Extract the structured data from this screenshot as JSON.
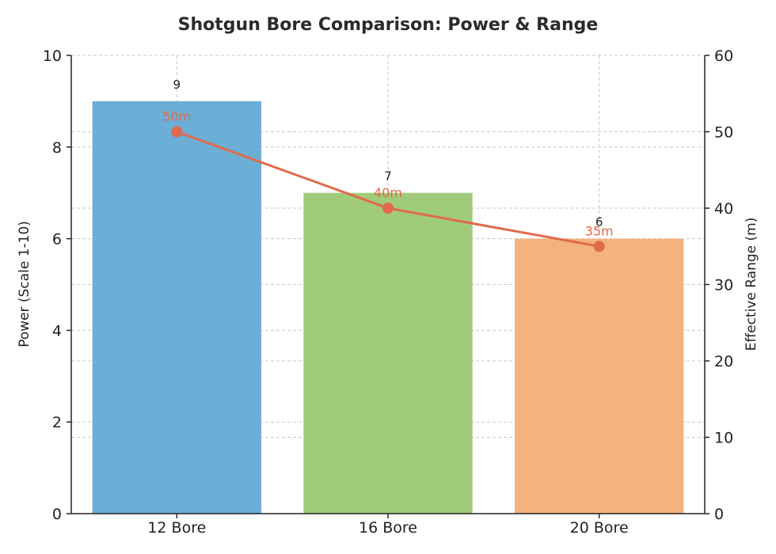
{
  "chart_data": {
    "type": "bar",
    "title": "Shotgun Bore Comparison: Power & Range",
    "categories": [
      "12 Bore",
      "16 Bore",
      "20 Bore"
    ],
    "series": [
      {
        "type": "bar",
        "axis": "left",
        "values": [
          9,
          7,
          6
        ],
        "labels": [
          "9",
          "7",
          "6"
        ],
        "colors": [
          "#6baed6",
          "#a0cb7a",
          "#f4b27f"
        ]
      },
      {
        "type": "line",
        "axis": "right",
        "values": [
          50,
          40,
          35
        ],
        "labels": [
          "50m",
          "40m",
          "35m"
        ],
        "color": "#e06a4a"
      }
    ],
    "ylabel": "Power (Scale 1-10)",
    "ylim": [
      0,
      10
    ],
    "yticks": [
      0,
      2,
      4,
      6,
      8,
      10
    ],
    "y2label": "Effective Range (m)",
    "y2lim": [
      0,
      60
    ],
    "y2ticks": [
      0,
      10,
      20,
      30,
      40,
      50,
      60
    ],
    "grid": true
  }
}
